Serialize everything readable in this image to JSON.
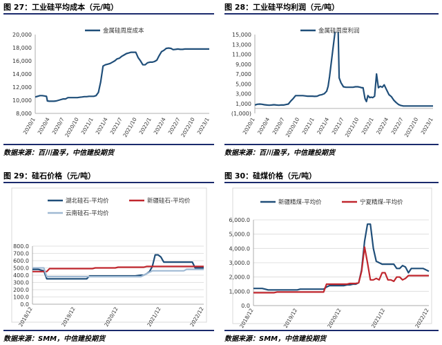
{
  "colors": {
    "navy": "#1f4e79",
    "red": "#c0262d",
    "lightblue": "#9fb9d3",
    "rule": "#1a2a6c"
  },
  "panels": [
    {
      "title": "图 27：工业硅平均成本（元/吨）",
      "source": "数据来源：百川盈孚，中信建投期货"
    },
    {
      "title": "图 28：工业硅平均利润（元/吨）",
      "source": "数据来源：百川盈孚，中信建投期货"
    },
    {
      "title": "图 29：硅石价格（元/吨）",
      "source": "数据来源：SMM，中信建投期货"
    },
    {
      "title": "图 30：硅煤价格（元/吨）",
      "source": "数据来源：SMM，中信建投期货"
    }
  ],
  "chart_data": [
    {
      "type": "line",
      "ylim": [
        8000,
        20000
      ],
      "y_ticks": [
        "8,000",
        "10,000",
        "12,000",
        "14,000",
        "16,000",
        "18,000",
        "20,000"
      ],
      "x_ticks": [
        "2020/1",
        "2020/4",
        "2020/7",
        "2020/10",
        "2021/1",
        "2021/4",
        "2021/7",
        "2021/10",
        "2022/1",
        "2022/4",
        "2022/7",
        "2022/10",
        "2023/1"
      ],
      "legend_position": "top-center",
      "series": [
        {
          "name": "金属硅周度成本",
          "color": "#1f4e79",
          "x": [
            0,
            0.5,
            1,
            1.5,
            2,
            2.4,
            2.6,
            3,
            3.5,
            4,
            4.5,
            5,
            5.5,
            6,
            6.5,
            7,
            7.5,
            8,
            8.5,
            9,
            9.5,
            10,
            10.5,
            11,
            11.5,
            12,
            12.5,
            13,
            13.5,
            14,
            14.5,
            15,
            15.5,
            16,
            16.5,
            17,
            17.5,
            18,
            18.5,
            19,
            19.5,
            20,
            20.5,
            21,
            21.5,
            22,
            22.5,
            23,
            23.5,
            24,
            24.5,
            25,
            25.5,
            26,
            26.5,
            27,
            27.5,
            28,
            28.5,
            29,
            29.5,
            30,
            30.5,
            31,
            31.5,
            32,
            32.5,
            33,
            33.5,
            34,
            34.5,
            35,
            35.5,
            36,
            36.5,
            37,
            37.2
          ],
          "values": [
            10500,
            10600,
            10700,
            10700,
            10650,
            10600,
            9900,
            9850,
            9850,
            9850,
            9900,
            10000,
            10100,
            10200,
            10200,
            10400,
            10400,
            10400,
            10400,
            10400,
            10450,
            10500,
            10550,
            10550,
            10600,
            10600,
            10600,
            10700,
            11200,
            12800,
            15200,
            15400,
            15500,
            15600,
            15800,
            16000,
            16300,
            16400,
            16700,
            16900,
            17100,
            17200,
            17300,
            17300,
            17300,
            16500,
            16000,
            15400,
            15400,
            15700,
            15800,
            15800,
            15900,
            16100,
            16800,
            17400,
            17600,
            17900,
            17950,
            17900,
            17700,
            17750,
            17800,
            17750,
            17750,
            17800,
            17800,
            17800,
            17800,
            17800,
            17800,
            17800,
            17800,
            17800,
            17800,
            17800,
            17800
          ]
        }
      ]
    },
    {
      "type": "line",
      "ylim": [
        -1000,
        15000
      ],
      "y_ticks": [
        "(1,000)",
        "1,000",
        "3,000",
        "5,000",
        "7,000",
        "9,000",
        "11,000",
        "13,000",
        "15,000"
      ],
      "x_ticks": [
        "2020/1",
        "2020/4",
        "2020/7",
        "2020/10",
        "2021/1",
        "2021/4",
        "2021/7",
        "2021/10",
        "2022/1",
        "2022/4",
        "2022/7",
        "2022/10",
        "2023/1"
      ],
      "legend_position": "top-center",
      "series": [
        {
          "name": "金属硅周度利润",
          "color": "#1f4e79",
          "x": [
            0,
            0.5,
            1,
            1.5,
            2,
            2.5,
            3,
            3.5,
            4,
            4.5,
            5,
            5.5,
            6,
            6.5,
            7,
            7.5,
            8,
            8.5,
            9,
            9.5,
            10,
            10.5,
            11,
            11.5,
            12,
            12.5,
            13,
            13.5,
            14,
            14.5,
            15,
            15.3,
            15.6,
            17.3,
            17.6,
            18,
            18.5,
            19,
            19.5,
            20,
            20.5,
            21,
            21.5,
            22,
            22.3,
            22.6,
            23,
            23.3,
            23.6,
            24,
            24.3,
            24.6,
            25,
            25.4,
            25.8,
            26.2,
            26.6,
            27,
            27.5,
            28,
            28.5,
            29,
            29.5,
            30,
            30.5,
            31,
            31.5,
            32,
            32.5,
            33,
            33.5,
            34,
            34.5,
            35,
            35.5,
            36,
            36.5,
            37.2
          ],
          "values": [
            700,
            850,
            900,
            850,
            750,
            700,
            650,
            700,
            750,
            700,
            650,
            700,
            700,
            800,
            900,
            1500,
            2000,
            2600,
            2600,
            2600,
            2600,
            2550,
            2500,
            2500,
            2500,
            2450,
            2500,
            2700,
            2800,
            3000,
            3500,
            4500,
            6500,
            20000,
            6200,
            5200,
            4400,
            4300,
            4300,
            4300,
            4300,
            4400,
            4400,
            4300,
            4200,
            4200,
            2000,
            1400,
            2600,
            2200,
            2300,
            2200,
            2500,
            7000,
            4200,
            4500,
            4300,
            4800,
            3800,
            2800,
            2400,
            1700,
            1200,
            800,
            600,
            500,
            500,
            500,
            500,
            500,
            500,
            500,
            500,
            500,
            500,
            500,
            500,
            500
          ]
        }
      ]
    },
    {
      "type": "line",
      "ylim": [
        0,
        800
      ],
      "y_ticks": [
        "0.0",
        "100.0",
        "200.0",
        "300.0",
        "400.0",
        "500.0",
        "600.0",
        "700.0",
        "800.0"
      ],
      "x_ticks": [
        "2018/12",
        "2019/12",
        "2020/12",
        "2021/12",
        "2022/12"
      ],
      "legend_position": "top",
      "series": [
        {
          "name": "湖北硅石-平均价",
          "color": "#1f4e79",
          "x": [
            0,
            1,
            2,
            3,
            4,
            5,
            6,
            7,
            8,
            9,
            10,
            11,
            12,
            13,
            14,
            15,
            16,
            17,
            18,
            19,
            20,
            21,
            22,
            23,
            24,
            25,
            26,
            27,
            28,
            29,
            30,
            31,
            32,
            33,
            34,
            35,
            36,
            37,
            38,
            39,
            40,
            41,
            42,
            43,
            44,
            45,
            46,
            47,
            48,
            49,
            50,
            51,
            52,
            53,
            54,
            55,
            56,
            57,
            58,
            59,
            60
          ],
          "values": [
            480,
            480,
            480,
            470,
            460,
            350,
            350,
            350,
            350,
            350,
            350,
            350,
            350,
            350,
            350,
            350,
            350,
            350,
            350,
            350,
            390,
            390,
            390,
            390,
            390,
            390,
            390,
            390,
            390,
            390,
            390,
            390,
            390,
            390,
            390,
            390,
            390,
            395,
            400,
            400,
            420,
            450,
            520,
            680,
            680,
            650,
            580,
            580,
            580,
            580,
            580,
            580,
            580,
            580,
            580,
            580,
            580,
            500,
            500,
            500,
            500
          ]
        },
        {
          "name": "新疆硅石-平均价",
          "color": "#c0262d",
          "x": [
            0,
            1,
            2,
            3,
            4,
            5,
            6,
            7,
            8,
            9,
            10,
            11,
            12,
            13,
            14,
            15,
            16,
            17,
            18,
            19,
            20,
            21,
            22,
            23,
            24,
            25,
            26,
            27,
            28,
            29,
            30,
            31,
            32,
            33,
            34,
            35,
            36,
            37,
            38,
            39,
            40,
            41,
            42,
            43,
            44,
            45,
            46,
            47,
            48,
            49,
            50,
            51,
            52,
            53,
            54,
            55,
            56,
            57,
            58,
            59,
            60
          ],
          "values": [
            450,
            450,
            450,
            450,
            450,
            450,
            490,
            490,
            490,
            490,
            490,
            490,
            490,
            490,
            490,
            490,
            490,
            490,
            490,
            490,
            490,
            490,
            500,
            500,
            500,
            500,
            500,
            500,
            500,
            500,
            510,
            510,
            510,
            510,
            510,
            510,
            510,
            510,
            510,
            510,
            520,
            520,
            520,
            520,
            520,
            520,
            520,
            520,
            520,
            520,
            520,
            520,
            520,
            520,
            520,
            520,
            520,
            520,
            520,
            520,
            520
          ]
        },
        {
          "name": "云南硅石-平均价",
          "color": "#9fb9d3",
          "x": [
            0,
            1,
            2,
            3,
            4,
            5,
            6,
            7,
            8,
            9,
            10,
            11,
            12,
            13,
            14,
            15,
            16,
            17,
            18,
            19,
            20,
            21,
            22,
            23,
            24,
            25,
            26,
            27,
            28,
            29,
            30,
            31,
            32,
            33,
            34,
            35,
            36,
            37,
            38,
            39,
            40,
            41,
            42,
            43,
            44,
            45,
            46,
            47,
            48,
            49,
            50,
            51,
            52,
            53,
            54,
            55,
            56,
            57,
            58,
            59,
            60
          ],
          "values": [
            500,
            500,
            500,
            500,
            500,
            380,
            380,
            380,
            380,
            380,
            380,
            380,
            380,
            380,
            380,
            380,
            380,
            380,
            380,
            380,
            380,
            380,
            380,
            380,
            380,
            380,
            380,
            380,
            380,
            380,
            380,
            380,
            380,
            380,
            380,
            380,
            380,
            380,
            380,
            400,
            420,
            440,
            460,
            460,
            460,
            460,
            460,
            460,
            460,
            460,
            460,
            460,
            460,
            460,
            480,
            480,
            480,
            480,
            480,
            480,
            480
          ]
        }
      ]
    },
    {
      "type": "line",
      "ylim": [
        0,
        6000
      ],
      "y_ticks": [
        "0.0",
        "1,000.0",
        "2,000.0",
        "3,000.0",
        "4,000.0",
        "5,000.0",
        "6,000.0"
      ],
      "x_ticks": [
        "2018/12",
        "2019/12",
        "2020/12",
        "2021/12",
        "2022/12"
      ],
      "legend_position": "top",
      "series": [
        {
          "name": "新疆精煤-平均价",
          "color": "#1f4e79",
          "x": [
            0,
            1,
            2,
            3,
            4,
            5,
            6,
            7,
            8,
            9,
            10,
            11,
            12,
            13,
            14,
            15,
            16,
            17,
            18,
            19,
            20,
            21,
            22,
            23,
            24,
            25,
            26,
            27,
            28,
            29,
            30,
            31,
            32,
            33,
            34,
            35,
            36,
            37,
            38,
            39,
            40,
            41,
            42,
            43,
            44,
            45,
            46,
            47,
            48,
            49,
            50,
            51,
            52,
            53,
            54,
            55,
            56,
            57,
            58,
            59,
            60
          ],
          "values": [
            1200,
            1200,
            1200,
            1200,
            1150,
            1100,
            1100,
            1100,
            1100,
            1100,
            1100,
            1100,
            1100,
            1100,
            1100,
            1100,
            1150,
            1150,
            1150,
            1150,
            1150,
            1150,
            1150,
            1150,
            1150,
            1300,
            1400,
            1400,
            1400,
            1400,
            1400,
            1400,
            1450,
            1450,
            1500,
            1500,
            1600,
            2500,
            4500,
            5700,
            5700,
            4000,
            3100,
            3000,
            2900,
            2900,
            2900,
            2900,
            2900,
            2600,
            2600,
            2800,
            2700,
            2300,
            2600,
            2600,
            2600,
            2600,
            2600,
            2500,
            2400
          ]
        },
        {
          "name": "宁夏精煤-平均价",
          "color": "#c0262d",
          "x": [
            0,
            1,
            2,
            3,
            4,
            5,
            6,
            7,
            8,
            9,
            10,
            11,
            12,
            13,
            14,
            15,
            16,
            17,
            18,
            19,
            20,
            21,
            22,
            23,
            24,
            25,
            26,
            27,
            28,
            29,
            30,
            31,
            32,
            33,
            34,
            35,
            36,
            37,
            38,
            39,
            40,
            41,
            42,
            43,
            44,
            45,
            46,
            47,
            48,
            49,
            50,
            51,
            52,
            53,
            54,
            55,
            56,
            57,
            58,
            59,
            60
          ],
          "values": [
            900,
            900,
            900,
            900,
            900,
            900,
            900,
            900,
            950,
            950,
            950,
            950,
            950,
            950,
            950,
            950,
            950,
            950,
            950,
            950,
            950,
            950,
            950,
            950,
            950,
            1500,
            1500,
            1500,
            1500,
            1500,
            1500,
            1500,
            1500,
            1550,
            1550,
            1550,
            1600,
            2400,
            4100,
            3000,
            1800,
            1800,
            1900,
            1800,
            2300,
            2300,
            1800,
            1800,
            1700,
            2000,
            2000,
            1800,
            1900,
            2100,
            2100,
            2100,
            2100,
            2100,
            2100,
            2100,
            2100
          ]
        }
      ]
    }
  ]
}
